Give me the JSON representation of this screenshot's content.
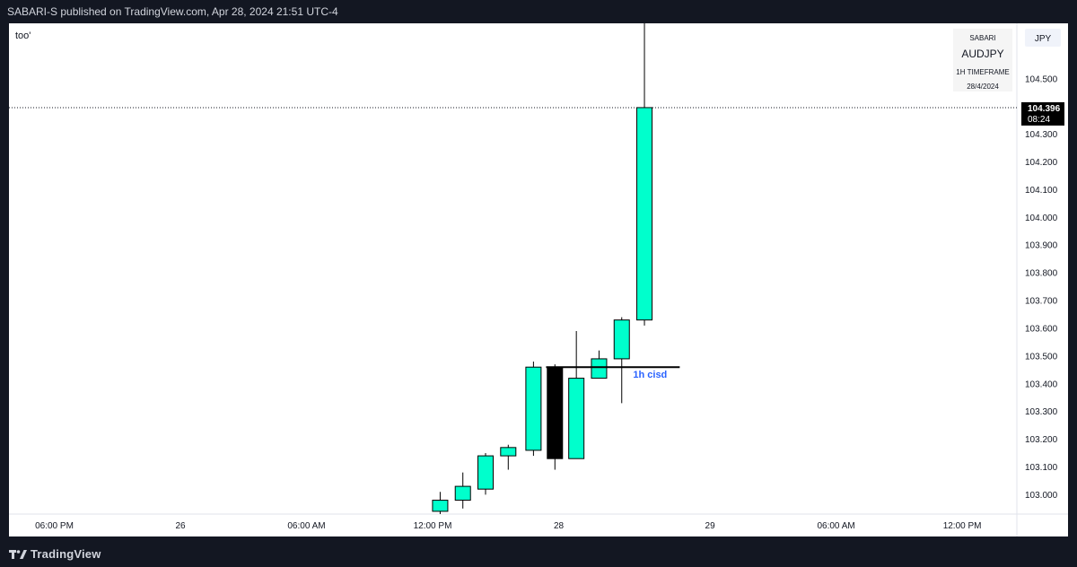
{
  "header": {
    "text": "SABARI-S published on TradingView.com, Apr 28, 2024 21:51 UTC-4"
  },
  "note": "too'",
  "info_box": {
    "user": "SABARI",
    "symbol": "AUDJPY",
    "timeframe": "1H TIMEFRAME",
    "date": "28/4/2024"
  },
  "currency": "JPY",
  "price_label": {
    "price": "104.396",
    "countdown": "08:24"
  },
  "level_label": "1h cisd",
  "footer": {
    "brand": "TradingView"
  },
  "colors": {
    "up": "#00ffcc",
    "down": "#000000",
    "cisd_text": "#2962ff",
    "frame": "#131722"
  },
  "chart_data": {
    "type": "candlestick",
    "ylim": [
      102.93,
      104.7
    ],
    "y_ticks": [
      "103.000",
      "103.100",
      "103.200",
      "103.300",
      "103.400",
      "103.500",
      "103.600",
      "103.700",
      "103.800",
      "103.900",
      "104.000",
      "104.100",
      "104.200",
      "104.300",
      "104.500"
    ],
    "x_ticks": [
      {
        "label": "06:00 PM",
        "slot": -15
      },
      {
        "label": "26",
        "slot": -10
      },
      {
        "label": "06:00 AM",
        "slot": -5
      },
      {
        "label": "12:00 PM",
        "slot": 0
      },
      {
        "label": "28",
        "slot": 5
      },
      {
        "label": "29",
        "slot": 11
      },
      {
        "label": "06:00 AM",
        "slot": 16
      },
      {
        "label": "12:00 PM",
        "slot": 21
      }
    ],
    "candles": [
      {
        "slot": 0.3,
        "o": 102.94,
        "h": 103.01,
        "l": 102.93,
        "c": 102.98
      },
      {
        "slot": 1.2,
        "o": 102.98,
        "h": 103.08,
        "l": 102.95,
        "c": 103.03
      },
      {
        "slot": 2.1,
        "o": 103.02,
        "h": 103.15,
        "l": 103.0,
        "c": 103.14
      },
      {
        "slot": 3.0,
        "o": 103.14,
        "h": 103.18,
        "l": 103.09,
        "c": 103.17
      },
      {
        "slot": 4.0,
        "o": 103.16,
        "h": 103.48,
        "l": 103.14,
        "c": 103.46
      },
      {
        "slot": 4.85,
        "o": 103.46,
        "h": 103.47,
        "l": 103.09,
        "c": 103.13,
        "bear": true
      },
      {
        "slot": 5.7,
        "o": 103.13,
        "h": 103.59,
        "l": 103.13,
        "c": 103.42
      },
      {
        "slot": 6.6,
        "o": 103.42,
        "h": 103.52,
        "l": 103.42,
        "c": 103.49
      },
      {
        "slot": 7.5,
        "o": 103.49,
        "h": 103.64,
        "l": 103.33,
        "c": 103.63
      },
      {
        "slot": 8.4,
        "o": 103.63,
        "h": 104.95,
        "l": 103.61,
        "c": 104.396
      }
    ],
    "current_price": 104.396,
    "level": {
      "price": 103.46,
      "from_slot": 4.5,
      "to_slot": 9.8,
      "label": "1h cisd"
    }
  }
}
